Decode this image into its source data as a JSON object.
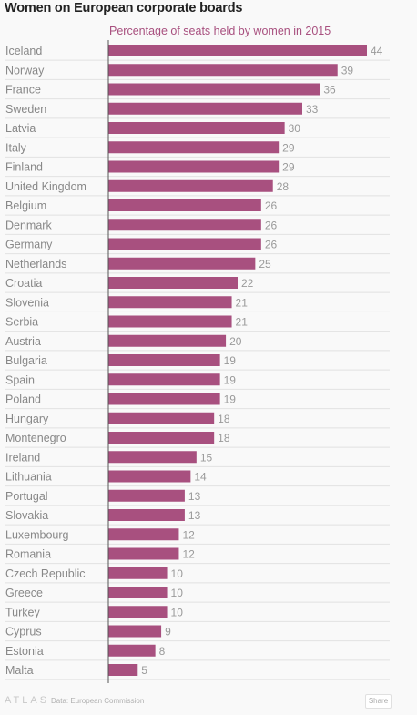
{
  "title": "Women on European corporate boards",
  "footer": {
    "logo": "ATLAS",
    "source": "Data: European Commission",
    "share_label": "Share"
  },
  "colors": {
    "bar": "#a8507f",
    "series_label": "#a8507f",
    "category_text": "#888888",
    "value_text": "#9a9a9a",
    "axis": "#555555",
    "gridline": "#e2e2e2"
  },
  "chart_data": {
    "type": "bar",
    "orientation": "horizontal",
    "title": "Women on European corporate boards",
    "series": [
      {
        "name": "Percentage of seats held by women in 2015"
      }
    ],
    "categories": [
      "Iceland",
      "Norway",
      "France",
      "Sweden",
      "Latvia",
      "Italy",
      "Finland",
      "United Kingdom",
      "Belgium",
      "Denmark",
      "Germany",
      "Netherlands",
      "Croatia",
      "Slovenia",
      "Serbia",
      "Austria",
      "Bulgaria",
      "Spain",
      "Poland",
      "Hungary",
      "Montenegro",
      "Ireland",
      "Lithuania",
      "Portugal",
      "Slovakia",
      "Luxembourg",
      "Romania",
      "Czech Republic",
      "Greece",
      "Turkey",
      "Cyprus",
      "Estonia",
      "Malta"
    ],
    "values": [
      44,
      39,
      36,
      33,
      30,
      29,
      29,
      28,
      26,
      26,
      26,
      25,
      22,
      21,
      21,
      20,
      19,
      19,
      19,
      18,
      18,
      15,
      14,
      13,
      13,
      12,
      12,
      10,
      10,
      10,
      9,
      8,
      5
    ],
    "xlim": [
      0,
      44
    ],
    "grid": true
  }
}
